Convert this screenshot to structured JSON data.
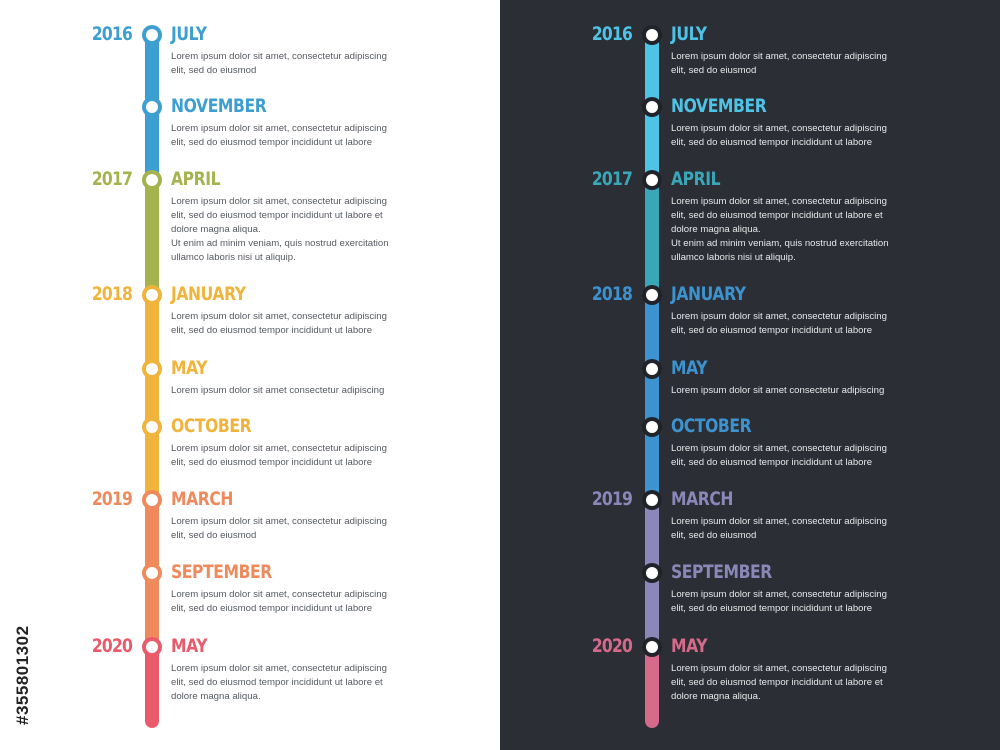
{
  "panels": [
    {
      "id": "light",
      "entries": [
        {
          "year": "2016",
          "month": "JULY",
          "desc": "Lorem ipsum dolor sit amet, consectetur adipiscing\nelit, sed do eiusmod",
          "color": "#3d9fd1"
        },
        {
          "year": "",
          "month": "NOVEMBER",
          "desc": "Lorem ipsum dolor sit amet, consectetur adipiscing\nelit, sed do eiusmod tempor incididunt ut labore",
          "color": "#3d9fd1"
        },
        {
          "year": "2017",
          "month": "APRIL",
          "desc": "Lorem ipsum dolor sit amet, consectetur adipiscing\nelit, sed do eiusmod tempor incididunt ut labore et\ndolore magna aliqua.\nUt enim ad minim veniam, quis nostrud exercitation\nullamco laboris nisi ut aliquip.",
          "color": "#a4b34e"
        },
        {
          "year": "2018",
          "month": "JANUARY",
          "desc": "Lorem ipsum dolor sit amet, consectetur adipiscing\nelit, sed do eiusmod tempor incididunt ut labore",
          "color": "#f0b43c"
        },
        {
          "year": "",
          "month": "MAY",
          "desc": "Lorem ipsum dolor sit amet consectetur adipiscing",
          "color": "#f0b43c"
        },
        {
          "year": "",
          "month": "OCTOBER",
          "desc": "Lorem ipsum dolor sit amet, consectetur adipiscing\nelit, sed do eiusmod tempor incididunt ut labore",
          "color": "#f0b43c"
        },
        {
          "year": "2019",
          "month": "MARCH",
          "desc": "Lorem ipsum dolor sit amet, consectetur adipiscing\nelit, sed do eiusmod",
          "color": "#ef8a5c"
        },
        {
          "year": "",
          "month": "SEPTEMBER",
          "desc": "Lorem ipsum dolor sit amet, consectetur adipiscing\nelit, sed do eiusmod tempor incididunt ut labore",
          "color": "#ef8a5c"
        },
        {
          "year": "2020",
          "month": "MAY",
          "desc": "Lorem ipsum dolor sit amet, consectetur adipiscing\nelit, sed do eiusmod tempor incididunt ut labore et\ndolore magna aliqua.",
          "color": "#e95b6b"
        }
      ]
    },
    {
      "id": "dark",
      "entries": [
        {
          "year": "2016",
          "month": "JULY",
          "desc": "Lorem ipsum dolor sit amet, consectetur adipiscing\nelit, sed do eiusmod",
          "color": "#4fc3e6"
        },
        {
          "year": "",
          "month": "NOVEMBER",
          "desc": "Lorem ipsum dolor sit amet, consectetur adipiscing\nelit, sed do eiusmod tempor incididunt ut labore",
          "color": "#4fc3e6"
        },
        {
          "year": "2017",
          "month": "APRIL",
          "desc": "Lorem ipsum dolor sit amet, consectetur adipiscing\nelit, sed do eiusmod tempor incididunt ut labore et\ndolore magna aliqua.\nUt enim ad minim veniam, quis nostrud exercitation\nullamco laboris nisi ut aliquip.",
          "color": "#3aa7b8"
        },
        {
          "year": "2018",
          "month": "JANUARY",
          "desc": "Lorem ipsum dolor sit amet, consectetur adipiscing\nelit, sed do eiusmod tempor incididunt ut labore",
          "color": "#3d93d0"
        },
        {
          "year": "",
          "month": "MAY",
          "desc": "Lorem ipsum dolor sit amet consectetur adipiscing",
          "color": "#3d93d0"
        },
        {
          "year": "",
          "month": "OCTOBER",
          "desc": "Lorem ipsum dolor sit amet, consectetur adipiscing\nelit, sed do eiusmod tempor incididunt ut labore",
          "color": "#3d93d0"
        },
        {
          "year": "2019",
          "month": "MARCH",
          "desc": "Lorem ipsum dolor sit amet, consectetur adipiscing\nelit, sed do eiusmod",
          "color": "#8b87b8"
        },
        {
          "year": "",
          "month": "SEPTEMBER",
          "desc": "Lorem ipsum dolor sit amet, consectetur adipiscing\nelit, sed do eiusmod tempor incididunt ut labore",
          "color": "#8b87b8"
        },
        {
          "year": "2020",
          "month": "MAY",
          "desc": "Lorem ipsum dolor sit amet, consectetur adipiscing\nelit, sed do eiusmod tempor incididunt ut labore et\ndolore magna aliqua.",
          "color": "#d66a8a"
        }
      ]
    }
  ],
  "colors": {
    "light_background": "#ffffff",
    "dark_background": "#2b2f35"
  },
  "watermark": "#355801302"
}
